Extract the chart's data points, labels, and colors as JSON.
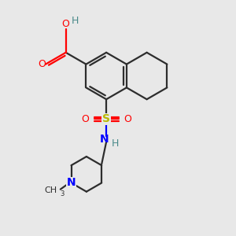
{
  "background_color": "#e8e8e8",
  "bond_color": "#2d2d2d",
  "oxygen_color": "#ff0000",
  "nitrogen_color": "#0000ff",
  "sulfur_color": "#b8b800",
  "hydrogen_color": "#4a8a8a",
  "figsize": [
    3.0,
    3.0
  ],
  "dpi": 100,
  "xlim": [
    0,
    10
  ],
  "ylim": [
    0,
    10
  ]
}
